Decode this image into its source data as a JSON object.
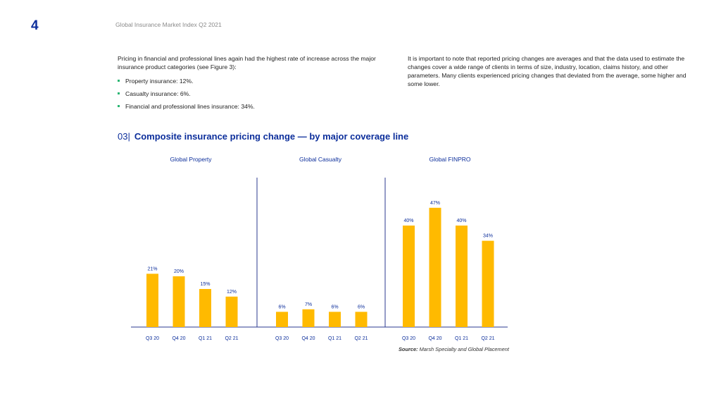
{
  "page": {
    "number": "4",
    "header_title": "Global Insurance Market Index Q2 2021"
  },
  "body": {
    "left_paragraph": "Pricing in financial and professional lines again had the highest rate of increase across the major insurance product categories (see Figure 3):",
    "bullets": [
      "Property insurance: 12%.",
      "Casualty insurance: 6%.",
      "Financial and professional lines insurance: 34%."
    ],
    "right_paragraph": "It is important to note that reported pricing changes are averages and that the data used to estimate the changes cover a wide range of clients in terms of size, industry, location, claims history, and other parameters. Many clients experienced pricing changes that deviated from the average, some higher and some lower."
  },
  "figure": {
    "number": "03|",
    "title": "Composite insurance pricing change — by major coverage line",
    "source_label": "Source:",
    "source_text": "Marsh Specialty and Global Placement"
  },
  "colors": {
    "bar": "#ffba00",
    "accent": "#0c2e9b",
    "axis": "#2b3a8f",
    "bullet": "#2bb673"
  },
  "chart_data": {
    "type": "bar",
    "unit": "%",
    "ylim": [
      0,
      50
    ],
    "grid": false,
    "legend": "none",
    "panels": [
      {
        "title": "Global Property",
        "categories": [
          "Q3 20",
          "Q4 20",
          "Q1 21",
          "Q2 21"
        ],
        "values": [
          21,
          20,
          15,
          12
        ],
        "labels": [
          "21%",
          "20%",
          "15%",
          "12%"
        ]
      },
      {
        "title": "Global Casualty",
        "categories": [
          "Q3 20",
          "Q4 20",
          "Q1 21",
          "Q2 21"
        ],
        "values": [
          6,
          7,
          6,
          6
        ],
        "labels": [
          "6%",
          "7%",
          "6%",
          "6%"
        ]
      },
      {
        "title": "Global FINPRO",
        "categories": [
          "Q3 20",
          "Q4 20",
          "Q1 21",
          "Q2 21"
        ],
        "values": [
          40,
          47,
          40,
          34
        ],
        "labels": [
          "40%",
          "47%",
          "40%",
          "34%"
        ]
      }
    ]
  }
}
